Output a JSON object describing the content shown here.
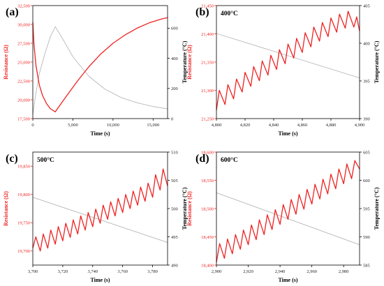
{
  "colors": {
    "resistance": "#ee2222",
    "temperature": "#b8b8b8",
    "axis_right": "#000000",
    "frame": "#000000"
  },
  "chart_data": [
    {
      "type": "line",
      "panel_label": "(a)",
      "xlabel": "Time (s)",
      "ylabel_left": "Resistance (Ω)",
      "ylabel_right": "Temperature (°C)",
      "xlim": [
        0,
        16800
      ],
      "ylim_left": [
        17500,
        32500
      ],
      "ylim_right": [
        0,
        750
      ],
      "xticks": [
        "0",
        "5,000",
        "10,000",
        "15,000"
      ],
      "xtick_values": [
        0,
        5000,
        10000,
        15000
      ],
      "yticks_left": [
        "17,500",
        "20,000",
        "22,500",
        "25,000",
        "27,500",
        "30,000",
        "32,500"
      ],
      "ytick_values_left": [
        17500,
        20000,
        22500,
        25000,
        27500,
        30000,
        32500
      ],
      "yticks_right": [
        "0",
        "200",
        "400",
        "600"
      ],
      "ytick_values_right": [
        0,
        200,
        400,
        600
      ],
      "series": [
        {
          "axis": "left",
          "x": [
            0,
            150,
            400,
            800,
            1200,
            1700,
            2200,
            2800,
            4000,
            5500,
            7000,
            8500,
            10000,
            11500,
            13000,
            14500,
            16000,
            16800
          ],
          "y": [
            30300,
            27300,
            24500,
            22000,
            20600,
            19500,
            18800,
            18400,
            20200,
            22400,
            24400,
            26100,
            27500,
            28600,
            29500,
            30200,
            30700,
            30900
          ]
        },
        {
          "axis": "right",
          "x": [
            0,
            300,
            800,
            1500,
            2200,
            2800,
            3600,
            5000,
            7000,
            9000,
            11000,
            13000,
            15000,
            16800
          ],
          "y": [
            25,
            140,
            295,
            430,
            545,
            610,
            540,
            410,
            280,
            195,
            140,
            105,
            80,
            65
          ]
        }
      ]
    },
    {
      "type": "line",
      "panel_label": "(b)",
      "annotation": "400°C",
      "xlabel": "Time (s)",
      "ylabel_left": "Resistance (Ω)",
      "ylabel_right": "Temperature (°C)",
      "xlim": [
        4800,
        4900
      ],
      "ylim_left": [
        21250,
        21450
      ],
      "ylim_right": [
        390,
        405
      ],
      "xticks": [
        "4,800",
        "4,820",
        "4,840",
        "4,860",
        "4,880",
        "4,900"
      ],
      "xtick_values": [
        4800,
        4820,
        4840,
        4860,
        4880,
        4900
      ],
      "yticks_left": [
        "21,250",
        "21,300",
        "21,350",
        "21,400",
        "21,450"
      ],
      "ytick_values_left": [
        21250,
        21300,
        21350,
        21400,
        21450
      ],
      "yticks_right": [
        "390",
        "395",
        "400",
        "405"
      ],
      "ytick_values_right": [
        390,
        395,
        400,
        405
      ],
      "series": [
        {
          "axis": "left",
          "x": [
            4800,
            4802,
            4806,
            4808,
            4812,
            4814,
            4818,
            4820,
            4824,
            4826,
            4830,
            4832,
            4836,
            4838,
            4842,
            4844,
            4848,
            4850,
            4854,
            4856,
            4860,
            4862,
            4866,
            4868,
            4872,
            4874,
            4878,
            4880,
            4884,
            4886,
            4890,
            4892,
            4896,
            4898,
            4900
          ],
          "y": [
            21265,
            21300,
            21275,
            21310,
            21285,
            21320,
            21297,
            21332,
            21307,
            21342,
            21317,
            21352,
            21327,
            21362,
            21337,
            21372,
            21347,
            21382,
            21357,
            21392,
            21367,
            21402,
            21377,
            21412,
            21387,
            21420,
            21395,
            21428,
            21403,
            21435,
            21410,
            21440,
            21412,
            21430,
            21405
          ]
        },
        {
          "axis": "right",
          "x": [
            4800,
            4900
          ],
          "y": [
            401.3,
            395.4
          ]
        }
      ]
    },
    {
      "type": "line",
      "panel_label": "(c)",
      "annotation": "500°C",
      "xlabel": "Time (s)",
      "ylabel_left": "Resistance (Ω)",
      "ylabel_right": "Temperature (°C)",
      "xlim": [
        3700,
        3790
      ],
      "ylim_left": [
        19675,
        19875
      ],
      "ylim_right": [
        490,
        510
      ],
      "xticks": [
        "3,700",
        "3,720",
        "3,740",
        "3,760",
        "3,780"
      ],
      "xtick_values": [
        3700,
        3720,
        3740,
        3760,
        3780
      ],
      "yticks_left": [
        "19,700",
        "19,750",
        "19,800",
        "19,850"
      ],
      "ytick_values_left": [
        19700,
        19750,
        19800,
        19850
      ],
      "yticks_right": [
        "490",
        "495",
        "500",
        "505",
        "510"
      ],
      "ytick_values_right": [
        490,
        495,
        500,
        505,
        510
      ],
      "series": [
        {
          "axis": "left",
          "x": [
            3700,
            3702,
            3705,
            3707,
            3710,
            3712,
            3715,
            3717,
            3720,
            3722,
            3725,
            3727,
            3730,
            3732,
            3735,
            3737,
            3740,
            3742,
            3745,
            3747,
            3750,
            3752,
            3755,
            3757,
            3760,
            3762,
            3765,
            3767,
            3770,
            3772,
            3775,
            3777,
            3780,
            3782,
            3785,
            3787,
            3790
          ],
          "y": [
            19705,
            19725,
            19700,
            19730,
            19705,
            19737,
            19712,
            19743,
            19718,
            19749,
            19724,
            19755,
            19730,
            19762,
            19737,
            19768,
            19743,
            19774,
            19749,
            19781,
            19756,
            19787,
            19762,
            19793,
            19768,
            19800,
            19775,
            19806,
            19781,
            19813,
            19788,
            19820,
            19795,
            19835,
            19808,
            19845,
            19815
          ]
        },
        {
          "axis": "right",
          "x": [
            3700,
            3790
          ],
          "y": [
            502.0,
            494.0
          ]
        }
      ]
    },
    {
      "type": "line",
      "panel_label": "(d)",
      "annotation": "600°C",
      "xlabel": "Time (s)",
      "ylabel_left": "Resistance (Ω)",
      "ylabel_right": "Temperature (°C)",
      "xlim": [
        2900,
        2990
      ],
      "ylim_left": [
        18400,
        18600
      ],
      "ylim_right": [
        585,
        605
      ],
      "xticks": [
        "2,900",
        "2,920",
        "2,940",
        "2,960",
        "2,980"
      ],
      "xtick_values": [
        2900,
        2920,
        2940,
        2960,
        2980
      ],
      "yticks_left": [
        "18,400",
        "18,450",
        "18,500",
        "18,550",
        "18,600"
      ],
      "ytick_values_left": [
        18400,
        18450,
        18500,
        18550,
        18600
      ],
      "yticks_right": [
        "585",
        "590",
        "595",
        "600",
        "605"
      ],
      "ytick_values_right": [
        585,
        590,
        595,
        600,
        605
      ],
      "series": [
        {
          "axis": "left",
          "x": [
            2900,
            2902,
            2905,
            2907,
            2910,
            2912,
            2915,
            2917,
            2920,
            2922,
            2925,
            2927,
            2930,
            2932,
            2935,
            2937,
            2940,
            2942,
            2945,
            2947,
            2950,
            2952,
            2955,
            2957,
            2960,
            2962,
            2965,
            2967,
            2970,
            2972,
            2975,
            2977,
            2980,
            2982,
            2985,
            2987,
            2990
          ],
          "y": [
            18405,
            18438,
            18412,
            18446,
            18420,
            18454,
            18428,
            18462,
            18436,
            18471,
            18445,
            18480,
            18454,
            18489,
            18463,
            18498,
            18472,
            18507,
            18481,
            18516,
            18490,
            18525,
            18499,
            18534,
            18508,
            18543,
            18517,
            18552,
            18526,
            18561,
            18535,
            18570,
            18544,
            18579,
            18553,
            18585,
            18570
          ]
        },
        {
          "axis": "right",
          "x": [
            2900,
            2990
          ],
          "y": [
            597.8,
            588.6
          ]
        }
      ]
    }
  ]
}
